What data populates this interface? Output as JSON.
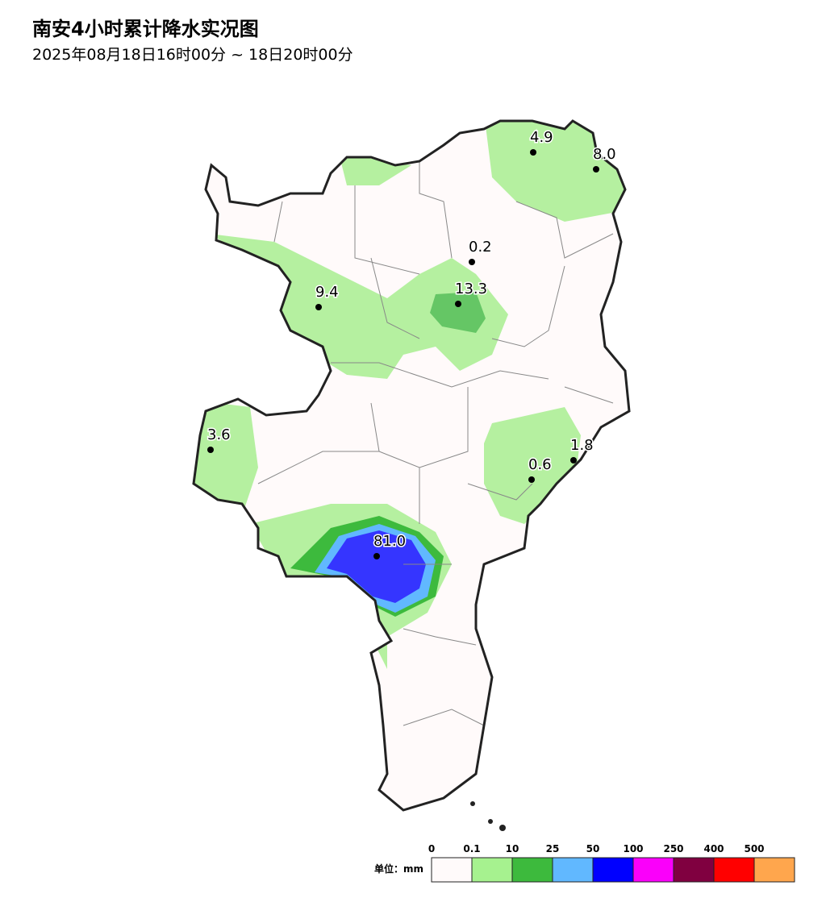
{
  "header": {
    "title": "南安4小时累计降水实况图",
    "subtitle": "2025年08月18日16时00分 ~ 18日20时00分"
  },
  "stations": [
    "4.9",
    "8.0",
    "0.2",
    "13.3",
    "9.4",
    "3.6",
    "1.8",
    "0.6",
    "81.0"
  ],
  "legend": {
    "unit": "单位：mm",
    "ticks": [
      "0",
      "0.1",
      "10",
      "25",
      "50",
      "100",
      "250",
      "400",
      "500"
    ],
    "colors": [
      "#fffafa",
      "#a6f28f",
      "#3dba3d",
      "#61b8ff",
      "#0000ff",
      "#fa00fa",
      "#800040",
      "#ff0000",
      "#ffa64d"
    ]
  }
}
